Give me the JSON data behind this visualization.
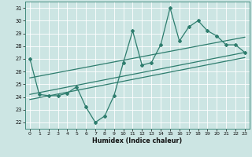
{
  "xlabel": "Humidex (Indice chaleur)",
  "ylabel": "",
  "xlim": [
    -0.5,
    23.5
  ],
  "ylim": [
    21.5,
    31.5
  ],
  "yticks": [
    22,
    23,
    24,
    25,
    26,
    27,
    28,
    29,
    30,
    31
  ],
  "xticks": [
    0,
    1,
    2,
    3,
    4,
    5,
    6,
    7,
    8,
    9,
    10,
    11,
    12,
    13,
    14,
    15,
    16,
    17,
    18,
    19,
    20,
    21,
    22,
    23
  ],
  "bg_color": "#cce5e3",
  "grid_color": "#b0d4d2",
  "line_color": "#2e7d6e",
  "data_x": [
    0,
    1,
    2,
    3,
    4,
    5,
    6,
    7,
    8,
    9,
    10,
    11,
    12,
    13,
    14,
    15,
    16,
    17,
    18,
    19,
    20,
    21,
    22,
    23
  ],
  "data_y": [
    27,
    24.2,
    24.1,
    24.1,
    24.3,
    24.8,
    23.2,
    22.0,
    22.5,
    24.1,
    26.7,
    29.2,
    26.5,
    26.7,
    28.1,
    31.0,
    28.4,
    29.5,
    30.0,
    29.2,
    28.8,
    28.1,
    28.1,
    27.5
  ],
  "trend1_x": [
    0,
    23
  ],
  "trend1_y": [
    24.2,
    27.5
  ],
  "trend2_x": [
    0,
    23
  ],
  "trend2_y": [
    25.5,
    28.7
  ],
  "trend3_x": [
    0,
    23
  ],
  "trend3_y": [
    23.8,
    27.1
  ]
}
